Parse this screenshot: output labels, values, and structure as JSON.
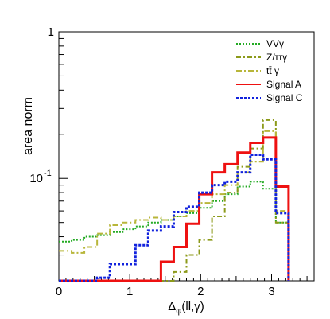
{
  "chart_data": {
    "type": "line",
    "step": true,
    "ylabel": "area norm",
    "xlabel_main": "Δ",
    "xlabel_sub": "φ",
    "xlabel_tail": "(ll,γ)",
    "xlim": [
      0,
      3.6
    ],
    "ylim": [
      0.02,
      1
    ],
    "yscale": "log",
    "grid": false,
    "legend_position": "top-right",
    "x_ticks": [
      "0",
      "1",
      "2",
      "3"
    ],
    "y_tick_one": "1",
    "y_tick_tenth_base": "10",
    "y_tick_tenth_exp": "-1",
    "bin_edges": [
      0,
      0.18,
      0.36,
      0.54,
      0.72,
      0.9,
      1.08,
      1.26,
      1.44,
      1.62,
      1.8,
      1.98,
      2.16,
      2.34,
      2.52,
      2.7,
      2.88,
      3.06,
      3.24
    ],
    "series": [
      {
        "name": "VVγ",
        "color": "#22aa22",
        "dash": "2,2",
        "width": 2,
        "values": [
          0.037,
          0.038,
          0.04,
          0.041,
          0.043,
          0.045,
          0.047,
          0.05,
          0.052,
          0.055,
          0.058,
          0.063,
          0.07,
          0.078,
          0.088,
          0.095,
          0.085,
          0.05
        ]
      },
      {
        "name": "Z/ττγ",
        "color": "#8c9a1a",
        "dash": "6,3,2,3",
        "width": 2,
        "values": [
          0.02,
          0.02,
          0.02,
          0.02,
          0.02,
          0.02,
          0.02,
          0.02,
          0.02,
          0.023,
          0.03,
          0.038,
          0.055,
          0.08,
          0.12,
          0.16,
          0.25,
          0.05
        ]
      },
      {
        "name": "tt̄ γ",
        "color": "#b8b63a",
        "dash": "7,3,2,3",
        "width": 2,
        "values": [
          0.032,
          0.031,
          0.034,
          0.042,
          0.048,
          0.05,
          0.052,
          0.054,
          0.052,
          0.055,
          0.06,
          0.068,
          0.078,
          0.09,
          0.11,
          0.13,
          0.21,
          0.06
        ]
      },
      {
        "name": "Signal A",
        "color": "#ee1111",
        "dash": "",
        "width": 3,
        "values": [
          0.02,
          0.02,
          0.02,
          0.02,
          0.02,
          0.02,
          0.02,
          0.02,
          0.027,
          0.034,
          0.049,
          0.078,
          0.11,
          0.125,
          0.15,
          0.175,
          0.19,
          0.088
        ]
      },
      {
        "name": "Signal C",
        "color": "#1122dd",
        "dash": "3,2",
        "width": 3,
        "values": [
          0.02,
          0.02,
          0.02,
          0.021,
          0.026,
          0.026,
          0.035,
          0.044,
          0.047,
          0.059,
          0.064,
          0.08,
          0.09,
          0.095,
          0.11,
          0.145,
          0.135,
          0.058
        ]
      }
    ]
  }
}
